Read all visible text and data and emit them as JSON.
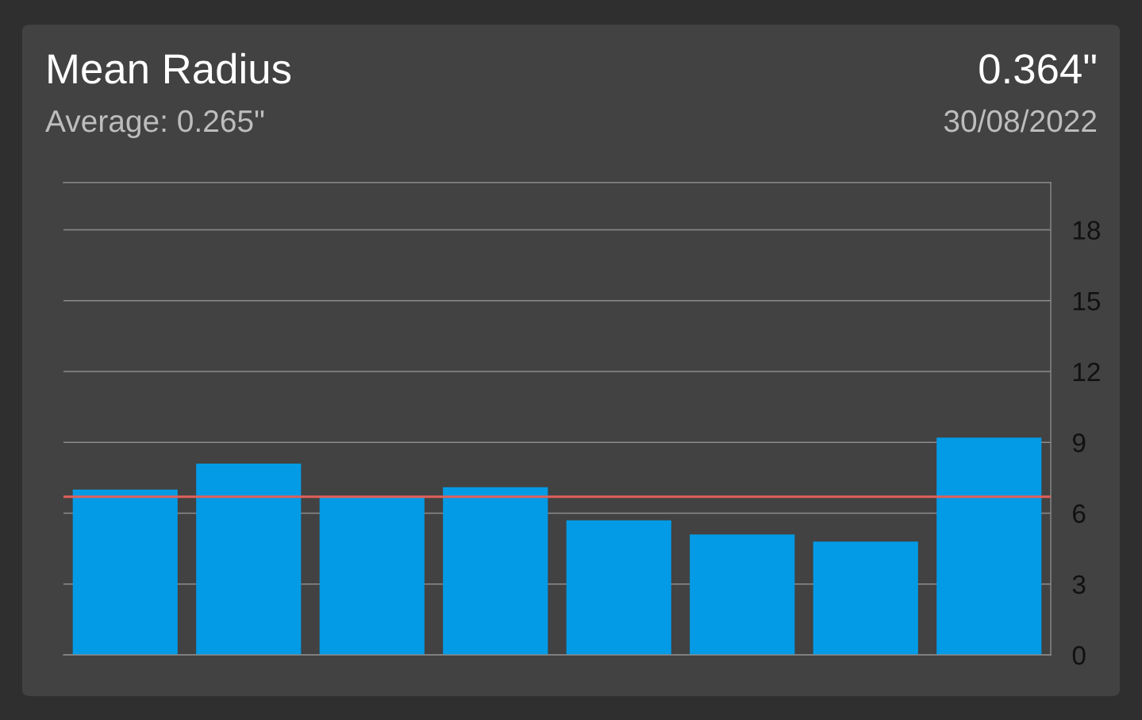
{
  "chart_data": {
    "type": "bar",
    "title": "Mean Radius",
    "subtitle": "Average: 0.265\"",
    "annotations": [
      "0.364\"",
      "30/08/2022"
    ],
    "categories": [
      null,
      null,
      null,
      null,
      null,
      null,
      null,
      null
    ],
    "values": [
      7.0,
      8.1,
      6.7,
      7.1,
      5.7,
      5.1,
      4.8,
      9.2
    ],
    "color": "#039be5",
    "ylim": [
      0,
      20
    ],
    "yticks": [
      0,
      3,
      6,
      9,
      12,
      15,
      18
    ],
    "grid": "y",
    "tick_labels": "y",
    "ref_lines": [
      {
        "axis": "y",
        "value": 6.7,
        "color": "#e0605a"
      }
    ]
  }
}
